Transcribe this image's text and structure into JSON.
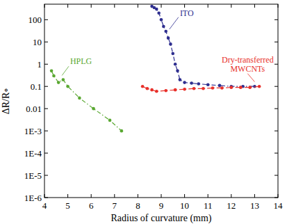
{
  "chart_data": {
    "type": "scatter",
    "log": "y",
    "x_label": "Radius of curvature (mm)",
    "y_label": "ΔR/R∘",
    "xlim": [
      4,
      14
    ],
    "xticks": [
      4,
      5,
      6,
      7,
      8,
      9,
      10,
      11,
      12,
      13,
      14
    ],
    "ylim": [
      1e-06,
      500
    ],
    "yticks": [
      {
        "value": 1e-06,
        "label": "1E-6"
      },
      {
        "value": 1e-05,
        "label": "1E-5"
      },
      {
        "value": 0.0001,
        "label": "1E-4"
      },
      {
        "value": 0.001,
        "label": "1E-3"
      },
      0.01,
      0.1,
      1,
      10,
      100
    ],
    "grid": false,
    "series": [
      {
        "name": "ITO",
        "color": "#2e2e8f",
        "marker": "circle",
        "line_style": "dashdot",
        "x": [
          8.6,
          8.7,
          8.8,
          8.9,
          9.0,
          9.1,
          9.2,
          9.3,
          9.4,
          9.5,
          9.6,
          9.7,
          9.8,
          10.0,
          10.3,
          10.6,
          11.0,
          11.5,
          12.0,
          12.5,
          13.0
        ],
        "values": [
          400,
          350,
          300,
          200,
          100,
          50,
          30,
          15,
          8,
          3,
          1,
          0.5,
          0.2,
          0.15,
          0.14,
          0.13,
          0.12,
          0.11,
          0.1,
          0.1,
          0.1
        ]
      },
      {
        "name": "Dry-transferred MWCNTs",
        "color": "#e8302a",
        "marker": "circle",
        "line_style": "dashdot",
        "x": [
          8.2,
          8.4,
          8.6,
          8.8,
          9.2,
          9.6,
          10.0,
          10.4,
          10.8,
          11.2,
          11.6,
          12.0,
          12.4,
          12.8,
          13.2
        ],
        "values": [
          0.1,
          0.08,
          0.07,
          0.06,
          0.065,
          0.07,
          0.075,
          0.08,
          0.08,
          0.085,
          0.085,
          0.09,
          0.09,
          0.09,
          0.1
        ]
      },
      {
        "name": "HPLG",
        "color": "#5aa832",
        "marker": "circle",
        "line_style": "dashdot",
        "x": [
          4.3,
          4.4,
          4.6,
          4.8,
          5.0,
          5.5,
          6.1,
          6.8,
          7.3
        ],
        "values": [
          0.5,
          0.3,
          0.15,
          0.2,
          0.1,
          0.03,
          0.01,
          0.003,
          0.001
        ]
      }
    ]
  }
}
